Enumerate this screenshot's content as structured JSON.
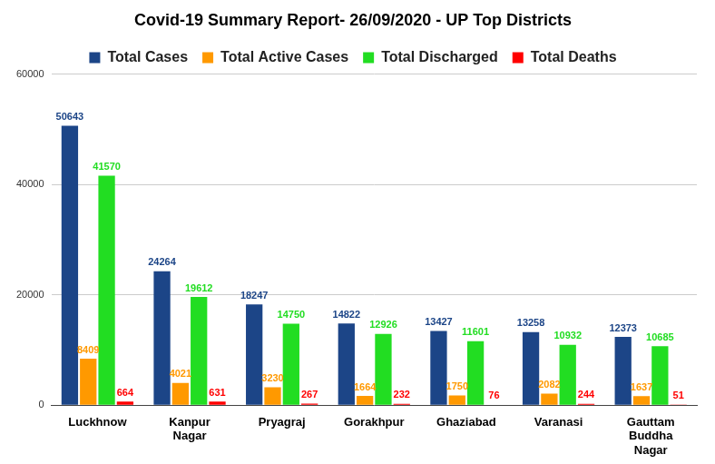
{
  "chart_data": {
    "type": "bar",
    "title": "Covid-19 Summary Report- 26/09/2020 - UP Top Districts",
    "categories": [
      "Luckhnow",
      "Kanpur Nagar",
      "Pryagraj",
      "Gorakhpur",
      "Ghaziabad",
      "Varanasi",
      "Gauttam Buddha Nagar"
    ],
    "series": [
      {
        "name": "Total Cases",
        "color": "#1c4587",
        "values": [
          50643,
          24264,
          18247,
          14822,
          13427,
          13258,
          12373
        ]
      },
      {
        "name": "Total Active Cases",
        "color": "#ff9900",
        "values": [
          8409,
          4021,
          3230,
          1664,
          1750,
          2082,
          1637
        ]
      },
      {
        "name": "Total Discharged",
        "color": "#22dd22",
        "values": [
          41570,
          19612,
          14750,
          12926,
          11601,
          10932,
          10685
        ]
      },
      {
        "name": "Total Deaths",
        "color": "#ff0000",
        "values": [
          664,
          631,
          267,
          232,
          76,
          244,
          51
        ]
      }
    ],
    "ylim": [
      0,
      60000
    ],
    "yticks": [
      0,
      20000,
      40000,
      60000
    ],
    "grid": true,
    "legend": "top",
    "data_labels": true
  }
}
